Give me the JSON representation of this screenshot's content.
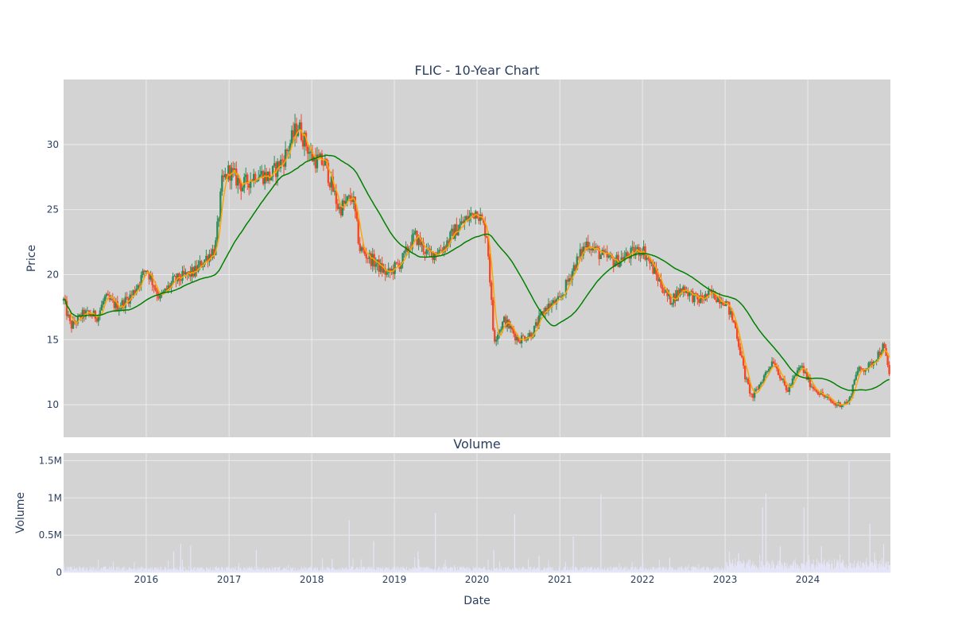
{
  "chart_data": [
    {
      "type": "candlestick",
      "title": "FLIC - 10-Year Chart",
      "ylabel": "Price",
      "ylim": [
        7.5,
        35
      ],
      "yticks": [
        10,
        15,
        20,
        25,
        30
      ],
      "grid": true,
      "background": "#d3d3d3",
      "colors": {
        "up": "#2e8b57",
        "down": "#f04a2a",
        "ma_short": "#ffa500",
        "ma_long": "#008000"
      },
      "price_anchors": [
        [
          "2015-01-01",
          18.0
        ],
        [
          "2015-02-01",
          16.0
        ],
        [
          "2015-04-01",
          17.0
        ],
        [
          "2015-06-01",
          16.8
        ],
        [
          "2015-07-01",
          18.2
        ],
        [
          "2015-09-01",
          17.5
        ],
        [
          "2015-11-01",
          18.5
        ],
        [
          "2016-01-01",
          20.5
        ],
        [
          "2016-03-01",
          18.2
        ],
        [
          "2016-05-01",
          19.5
        ],
        [
          "2016-08-01",
          20.2
        ],
        [
          "2016-10-01",
          21.5
        ],
        [
          "2016-11-01",
          22.0
        ],
        [
          "2016-12-01",
          27.0
        ],
        [
          "2017-01-01",
          28.0
        ],
        [
          "2017-03-01",
          26.8
        ],
        [
          "2017-05-01",
          27.8
        ],
        [
          "2017-07-01",
          27.5
        ],
        [
          "2017-09-01",
          29.0
        ],
        [
          "2017-11-01",
          31.5
        ],
        [
          "2018-01-01",
          29.0
        ],
        [
          "2018-03-01",
          28.5
        ],
        [
          "2018-05-01",
          25.0
        ],
        [
          "2018-07-01",
          26.0
        ],
        [
          "2018-08-01",
          22.0
        ],
        [
          "2018-10-01",
          21.0
        ],
        [
          "2018-12-01",
          20.0
        ],
        [
          "2019-02-01",
          21.0
        ],
        [
          "2019-04-01",
          23.0
        ],
        [
          "2019-06-01",
          21.5
        ],
        [
          "2019-08-01",
          22.0
        ],
        [
          "2019-10-01",
          23.5
        ],
        [
          "2020-01-01",
          25.0
        ],
        [
          "2020-02-15",
          23.0
        ],
        [
          "2020-03-15",
          15.0
        ],
        [
          "2020-05-01",
          16.5
        ],
        [
          "2020-07-01",
          15.0
        ],
        [
          "2020-09-01",
          15.5
        ],
        [
          "2020-11-01",
          17.5
        ],
        [
          "2021-01-01",
          18.0
        ],
        [
          "2021-03-01",
          20.5
        ],
        [
          "2021-05-01",
          22.5
        ],
        [
          "2021-07-01",
          21.5
        ],
        [
          "2021-09-01",
          21.0
        ],
        [
          "2021-11-01",
          21.5
        ],
        [
          "2022-01-01",
          22.0
        ],
        [
          "2022-03-01",
          20.0
        ],
        [
          "2022-05-01",
          18.0
        ],
        [
          "2022-07-01",
          19.0
        ],
        [
          "2022-09-01",
          18.0
        ],
        [
          "2022-11-01",
          18.5
        ],
        [
          "2023-01-01",
          18.0
        ],
        [
          "2023-02-15",
          16.0
        ],
        [
          "2023-04-01",
          12.0
        ],
        [
          "2023-05-01",
          10.5
        ],
        [
          "2023-07-01",
          12.5
        ],
        [
          "2023-08-01",
          13.5
        ],
        [
          "2023-10-01",
          11.0
        ],
        [
          "2023-12-01",
          13.0
        ],
        [
          "2024-01-15",
          11.5
        ],
        [
          "2024-03-01",
          10.8
        ],
        [
          "2024-05-01",
          10.0
        ],
        [
          "2024-07-01",
          10.2
        ],
        [
          "2024-08-01",
          12.5
        ],
        [
          "2024-10-01",
          13.0
        ],
        [
          "2024-12-01",
          14.5
        ],
        [
          "2024-12-31",
          12.0
        ]
      ]
    },
    {
      "type": "bar",
      "title": "Volume",
      "ylabel": "Volume",
      "xlabel": "Date",
      "ylim": [
        0,
        1600000
      ],
      "yticks": [
        0,
        500000,
        1000000,
        1500000
      ],
      "ytick_labels": [
        "0",
        "0.5M",
        "1M",
        "1.5M"
      ],
      "xticks": [
        "2016",
        "2017",
        "2018",
        "2019",
        "2020",
        "2021",
        "2022",
        "2023",
        "2024"
      ],
      "x_range": [
        "2015-01-01",
        "2024-12-31"
      ],
      "grid": true,
      "background": "#d3d3d3",
      "bar_color": "#e6e6fa",
      "volume_spikes": [
        [
          "2016-05-01",
          280000
        ],
        [
          "2016-06-01",
          380000
        ],
        [
          "2016-07-15",
          360000
        ],
        [
          "2017-05-01",
          300000
        ],
        [
          "2018-04-01",
          180000
        ],
        [
          "2018-06-15",
          700000
        ],
        [
          "2018-10-01",
          420000
        ],
        [
          "2019-04-15",
          280000
        ],
        [
          "2019-07-01",
          800000
        ],
        [
          "2020-03-15",
          300000
        ],
        [
          "2020-06-15",
          780000
        ],
        [
          "2020-10-01",
          220000
        ],
        [
          "2021-03-01",
          480000
        ],
        [
          "2021-07-01",
          1050000
        ],
        [
          "2022-01-01",
          250000
        ],
        [
          "2022-05-01",
          200000
        ],
        [
          "2023-03-01",
          260000
        ],
        [
          "2023-06-15",
          870000
        ],
        [
          "2023-06-30",
          1060000
        ],
        [
          "2023-09-01",
          350000
        ],
        [
          "2023-12-15",
          870000
        ],
        [
          "2024-03-01",
          350000
        ],
        [
          "2024-07-01",
          1500000
        ],
        [
          "2024-10-01",
          650000
        ],
        [
          "2024-12-01",
          380000
        ]
      ]
    }
  ]
}
